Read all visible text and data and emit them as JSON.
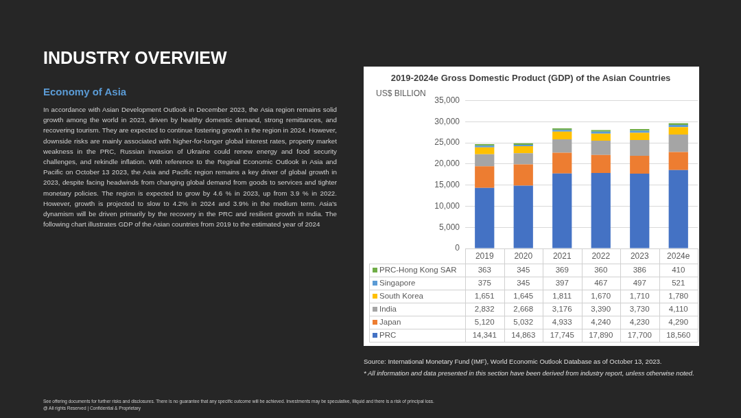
{
  "chart_data": {
    "type": "bar",
    "stacked": true,
    "title": "2019-2024e Gross Domestic Product (GDP) of the Asian Countries",
    "ylabel": "US$ BILLION",
    "categories": [
      "2019",
      "2020",
      "2021",
      "2022",
      "2023",
      "2024e"
    ],
    "series": [
      {
        "name": "PRC",
        "color": "#4472c4",
        "values": [
          14341,
          14863,
          17745,
          17890,
          17700,
          18560
        ],
        "value_labels": [
          "14,341",
          "14,863",
          "17,745",
          "17,890",
          "17,700",
          "18,560"
        ]
      },
      {
        "name": "Japan",
        "color": "#ed7d31",
        "values": [
          5120,
          5032,
          4933,
          4240,
          4230,
          4290
        ],
        "value_labels": [
          "5,120",
          "5,032",
          "4,933",
          "4,240",
          "4,230",
          "4,290"
        ]
      },
      {
        "name": "India",
        "color": "#a5a5a5",
        "values": [
          2832,
          2668,
          3176,
          3390,
          3730,
          4110
        ],
        "value_labels": [
          "2,832",
          "2,668",
          "3,176",
          "3,390",
          "3,730",
          "4,110"
        ]
      },
      {
        "name": "South Korea",
        "color": "#ffc000",
        "values": [
          1651,
          1645,
          1811,
          1670,
          1710,
          1780
        ],
        "value_labels": [
          "1,651",
          "1,645",
          "1,811",
          "1,670",
          "1,710",
          "1,780"
        ]
      },
      {
        "name": "Singapore",
        "color": "#5b9bd5",
        "values": [
          375,
          345,
          397,
          467,
          497,
          521
        ],
        "value_labels": [
          "375",
          "345",
          "397",
          "467",
          "497",
          "521"
        ]
      },
      {
        "name": "PRC-Hong Kong SAR",
        "color": "#70ad47",
        "values": [
          363,
          345,
          369,
          360,
          386,
          410
        ],
        "value_labels": [
          "363",
          "345",
          "369",
          "360",
          "386",
          "410"
        ]
      }
    ],
    "ylim": [
      0,
      35000
    ],
    "yticks": [
      0,
      {
        "value": 5000,
        "label": "5,000"
      },
      {
        "value": 10000,
        "label": "10,000"
      },
      {
        "value": 15000,
        "label": "15,000"
      },
      {
        "value": 20000,
        "label": "20,000"
      },
      {
        "value": 25000,
        "label": "25,000"
      },
      {
        "value": 30000,
        "label": "30,000"
      },
      {
        "value": 35000,
        "label": "35,000"
      }
    ],
    "grid": "y",
    "legend": "bottom",
    "annotations": [
      "INDUSTRY OVERVIEW",
      "Economy of Asia",
      "In accordance with Asian Development Outlook in December 2023, the Asia region remains solid growth among the world in 2023, driven by healthy domestic demand, strong remittances, and recovering tourism. They are expected to continue fostering growth in the region in 2024. However, downside risks are mainly associated with higher-for-longer global interest rates, property market weakness in the PRC, Russian invasion of Ukraine could renew energy and food security challenges, and rekindle inflation. With reference to the Reginal Economic Outlook in Asia and Pacific on October 13 2023, the Asia and Pacific region remains a key driver of global growth in 2023, despite facing headwinds from changing global demand from goods to services and tighter monetary policies. The region is expected to grow by 4.6 % in 2023, up from 3.9 % in 2022. However, growth is projected to slow to 4.2% in 2024 and 3.9% in the medium term. Asia's dynamism will be driven primarily by the recovery in the PRC and resilient growth in India. The following chart illustrates GDP of the Asian countries from 2019 to the estimated year of 2024",
      "Source: International Monetary Fund (IMF), World Economic Outlook Database as of October 13, 2023.",
      "* All information and data presented in this section have been derived from industry report, unless otherwise noted.",
      "See offering documents for further risks and disclosures. There is no guarantee that any specific outcome will be achieved. Investments may be speculative, illiquid and there is a risk of principal loss.",
      "@ All rights Reserved | Confidential & Proprietary"
    ]
  }
}
